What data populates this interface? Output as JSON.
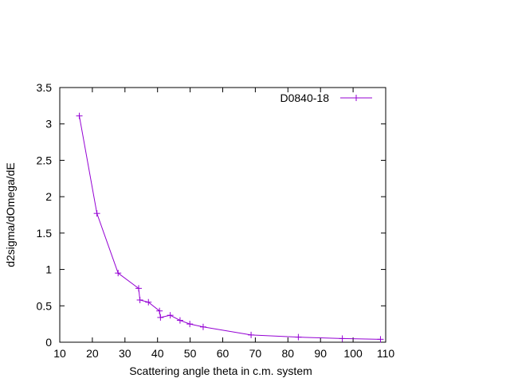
{
  "chart_data": {
    "type": "line",
    "title": "",
    "xlabel": "Scattering angle theta in c.m. system",
    "ylabel": "d2sigma/dOmega/dE",
    "xlim": [
      10,
      110
    ],
    "ylim": [
      0,
      3.5
    ],
    "x_ticks": [
      10,
      20,
      30,
      40,
      50,
      60,
      70,
      80,
      90,
      100,
      110
    ],
    "y_ticks": [
      0,
      0.5,
      1,
      1.5,
      2,
      2.5,
      3,
      3.5
    ],
    "x_tick_labels": [
      "10",
      "20",
      "30",
      "40",
      "50",
      "60",
      "70",
      "80",
      "90",
      "100",
      "110"
    ],
    "y_tick_labels": [
      "0",
      "0.5",
      "1",
      "1.5",
      "2",
      "2.5",
      "3",
      "3.5"
    ],
    "grid": false,
    "legend_position": "top-right",
    "series": [
      {
        "name": "D0840-18",
        "color": "#9400d3",
        "marker": "plus",
        "x": [
          16.0,
          21.4,
          27.9,
          34.2,
          34.6,
          37.2,
          40.6,
          40.9,
          43.9,
          46.9,
          49.9,
          54.0,
          68.7,
          83.2,
          96.7,
          108.4
        ],
        "y": [
          3.11,
          1.77,
          0.95,
          0.74,
          0.58,
          0.55,
          0.43,
          0.34,
          0.37,
          0.3,
          0.25,
          0.21,
          0.1,
          0.07,
          0.05,
          0.04
        ]
      }
    ]
  }
}
